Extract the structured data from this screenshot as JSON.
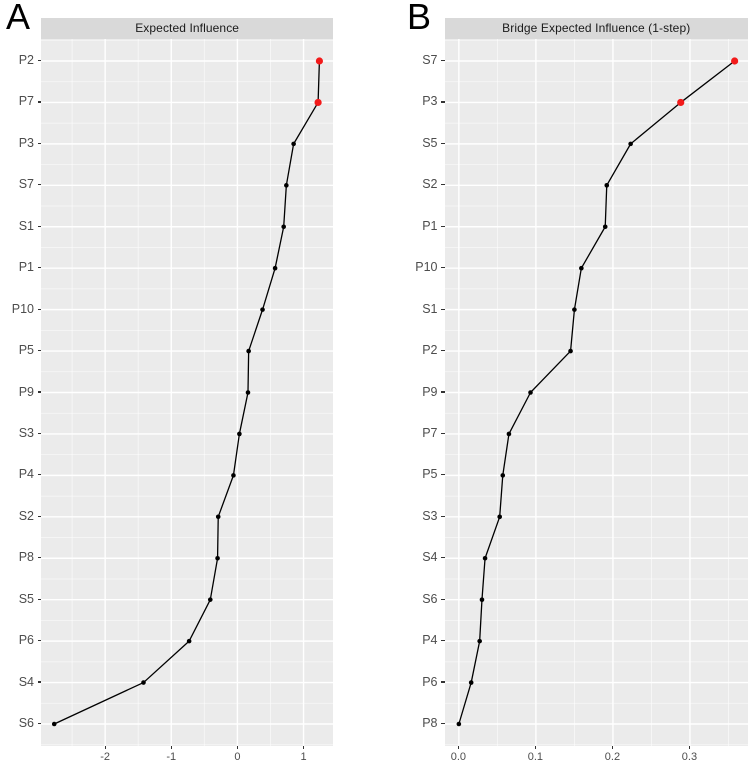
{
  "chart_style": {
    "panel_bg": "#EBEBEB",
    "strip_bg": "#D9D9D9",
    "strip_text": "#1A1A1A",
    "grid_color": "#FFFFFF",
    "line_color": "#000000",
    "point_color": "#000000",
    "highlight_color": "#F21A1A",
    "axis_text_color": "#4D4D4D",
    "tick_mark_color": "#333333"
  },
  "chart_data": [
    {
      "type": "line",
      "panel_label": "A",
      "title": "Expected Influence",
      "orientation": "horizontal-dot-line",
      "legend": "none",
      "grid": true,
      "categories": [
        "P2",
        "P7",
        "P3",
        "S7",
        "S1",
        "P1",
        "P10",
        "P5",
        "P9",
        "S3",
        "P4",
        "S2",
        "P8",
        "S5",
        "P6",
        "S4",
        "S6"
      ],
      "values": [
        1.24,
        1.22,
        0.85,
        0.74,
        0.7,
        0.57,
        0.38,
        0.17,
        0.16,
        0.03,
        -0.06,
        -0.29,
        -0.3,
        -0.41,
        -0.73,
        -1.42,
        -2.77
      ],
      "highlighted_categories": [
        "P2",
        "P7"
      ],
      "xlim": [
        -2.97,
        1.45
      ],
      "x_major_ticks": [
        -2,
        -1,
        0,
        1
      ],
      "x_tick_labels": [
        "-2",
        "-1",
        "0",
        "1"
      ],
      "x_minor_ticks": [
        -2.5,
        -1.5,
        -0.5,
        0.5,
        1.5
      ]
    },
    {
      "type": "line",
      "panel_label": "B",
      "title": "Bridge Expected Influence (1-step)",
      "orientation": "horizontal-dot-line",
      "legend": "none",
      "grid": true,
      "categories": [
        "S7",
        "P3",
        "S5",
        "S2",
        "P1",
        "P10",
        "S1",
        "P2",
        "P9",
        "P7",
        "P5",
        "S3",
        "S4",
        "S6",
        "P4",
        "P6",
        "P8"
      ],
      "values": [
        0.358,
        0.288,
        0.223,
        0.192,
        0.19,
        0.159,
        0.15,
        0.145,
        0.093,
        0.065,
        0.057,
        0.053,
        0.034,
        0.03,
        0.027,
        0.016,
        0.0
      ],
      "highlighted_categories": [
        "S7",
        "P3"
      ],
      "xlim": [
        -0.018,
        0.376
      ],
      "x_major_ticks": [
        0.0,
        0.1,
        0.2,
        0.3
      ],
      "x_tick_labels": [
        "0.0",
        "0.1",
        "0.2",
        "0.3"
      ],
      "x_minor_ticks": [
        0.05,
        0.15,
        0.25,
        0.35
      ]
    }
  ]
}
